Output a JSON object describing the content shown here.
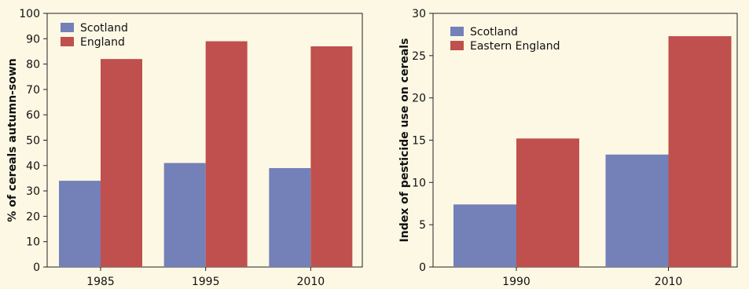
{
  "chart_data": [
    {
      "type": "bar",
      "ylabel": "% of cereals autumn-sown",
      "categories": [
        "1985",
        "1995",
        "2010"
      ],
      "ylim": [
        0,
        100
      ],
      "yticks": [
        "0",
        "10",
        "20",
        "30",
        "40",
        "50",
        "60",
        "70",
        "80",
        "90",
        "100"
      ],
      "legend_position": "top-left",
      "series": [
        {
          "name": "Scotland",
          "color": "#7480b8",
          "values": [
            34,
            41,
            39
          ]
        },
        {
          "name": "England",
          "color": "#c0504d",
          "values": [
            82,
            89,
            87
          ]
        }
      ]
    },
    {
      "type": "bar",
      "ylabel": "Index of pesticide use on cereals",
      "categories": [
        "1990",
        "2010"
      ],
      "ylim": [
        0,
        30
      ],
      "yticks": [
        "0",
        "5",
        "10",
        "15",
        "20",
        "25",
        "30"
      ],
      "legend_position": "top-left",
      "series": [
        {
          "name": "Scotland",
          "color": "#7480b8",
          "values": [
            7.4,
            13.3
          ]
        },
        {
          "name": "Eastern England",
          "color": "#c0504d",
          "values": [
            15.2,
            27.3
          ]
        }
      ]
    }
  ]
}
